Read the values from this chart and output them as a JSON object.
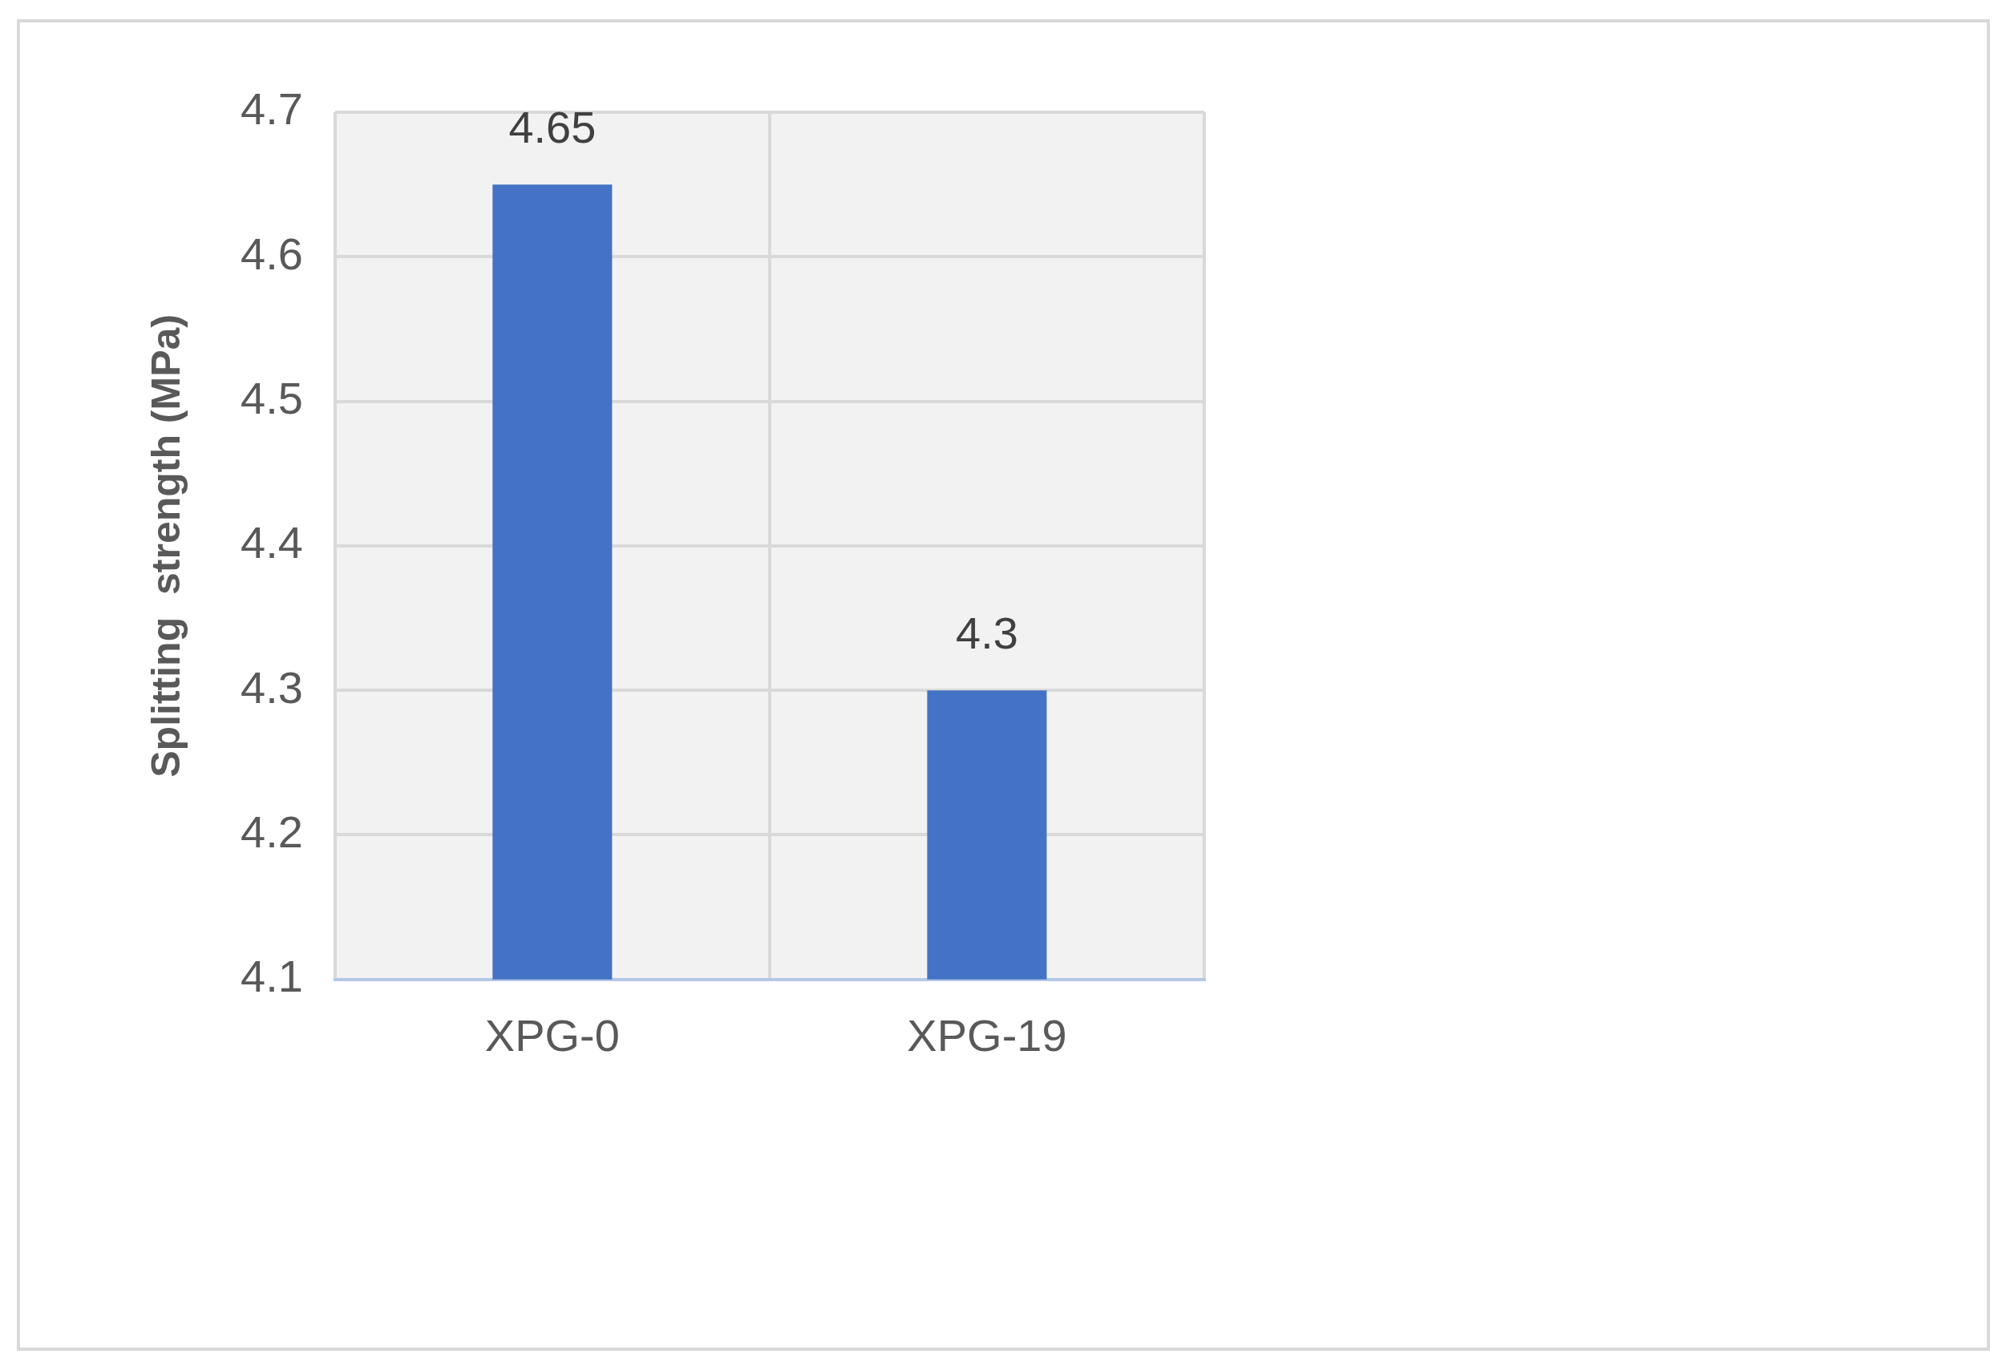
{
  "chart_data": {
    "type": "bar",
    "ylabel": "Splitting  strength (MPa)",
    "categories": [
      "XPG-0",
      "XPG-19"
    ],
    "values": [
      4.65,
      4.3
    ],
    "color": "#4472c4",
    "ylim": [
      4.1,
      4.7
    ],
    "yticks": [
      4.1,
      4.2,
      4.3,
      4.4,
      4.5,
      4.6,
      4.7
    ],
    "grid": true,
    "data_labels": true
  }
}
